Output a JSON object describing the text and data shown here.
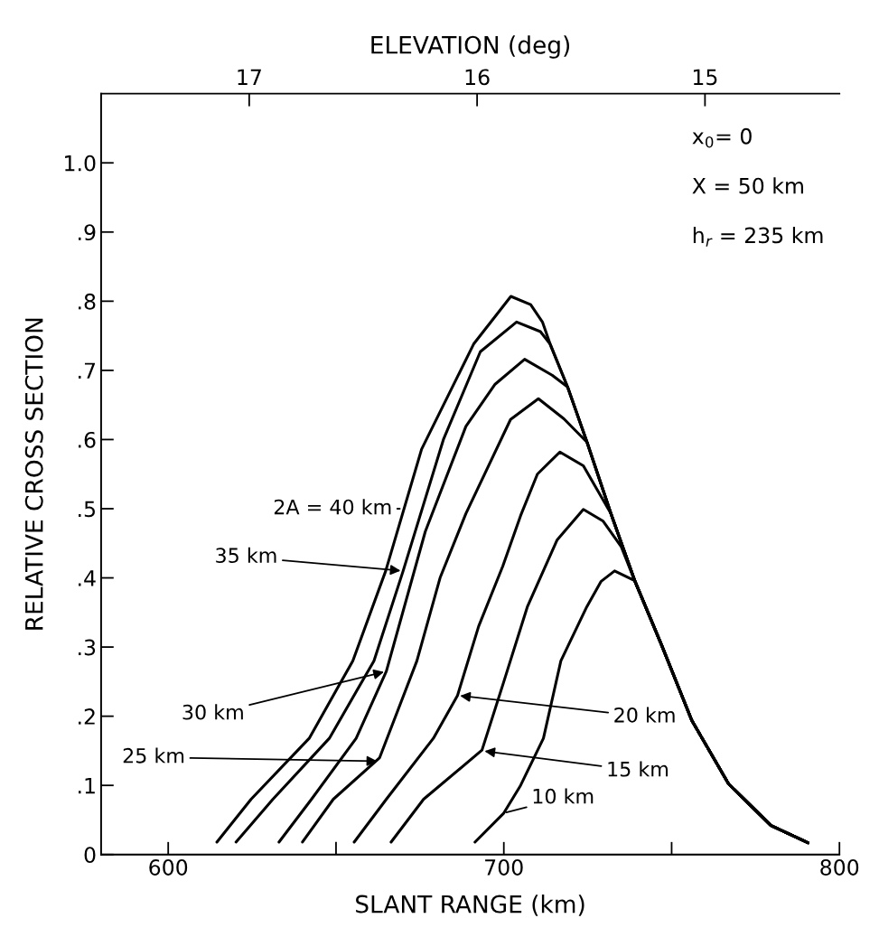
{
  "chart_data": {
    "type": "line",
    "xlabel": "SLANT RANGE (km)",
    "ylabel": "RELATIVE CROSS SECTION",
    "x2label": "ELEVATION (deg)",
    "xlim": [
      580,
      800
    ],
    "xticks": [
      600,
      {
        "value": 650,
        "label": null
      },
      700,
      {
        "value": 750,
        "label": null
      },
      800
    ],
    "x2lim": [
      17.65,
      14.41
    ],
    "x2ticks": [
      17,
      16,
      15
    ],
    "ylim": [
      0,
      1.1
    ],
    "yticks": [
      0,
      {
        "value": 0.1,
        "label": ".1"
      },
      {
        "value": 0.2,
        "label": ".2"
      },
      {
        "value": 0.3,
        "label": ".3"
      },
      {
        "value": 0.4,
        "label": ".4"
      },
      {
        "value": 0.5,
        "label": ".5"
      },
      {
        "value": 0.6,
        "label": ".6"
      },
      {
        "value": 0.7,
        "label": ".7"
      },
      {
        "value": 0.8,
        "label": ".8"
      },
      {
        "value": 0.9,
        "label": ".9"
      },
      {
        "value": 1.0,
        "label": "1.0"
      }
    ],
    "grid": false,
    "marker": "none",
    "line_style": "solid",
    "series": [
      {
        "color": "#000000",
        "x": [
          614.5,
          624.7,
          642,
          655,
          664.8,
          675.5,
          691,
          702.1,
          708,
          711.5,
          713.8,
          719,
          724.8,
          731.9,
          739,
          747,
          756,
          767,
          779.6,
          790.6
        ],
        "values": [
          0.018,
          0.08,
          0.168,
          0.28,
          0.41,
          0.586,
          0.738,
          0.807,
          0.795,
          0.77,
          0.738,
          0.676,
          0.596,
          0.493,
          0.396,
          0.303,
          0.194,
          0.102,
          0.042,
          0.017
        ]
      },
      {
        "color": "#000000",
        "x": [
          620.2,
          631.2,
          648,
          661.3,
          670,
          682,
          693,
          703.8,
          710.9,
          713.8,
          719,
          724.8,
          731.9,
          739,
          747,
          756,
          767,
          779.6,
          790.6
        ],
        "values": [
          0.018,
          0.08,
          0.168,
          0.28,
          0.41,
          0.6,
          0.727,
          0.77,
          0.756,
          0.738,
          0.676,
          0.596,
          0.493,
          0.396,
          0.303,
          0.194,
          0.102,
          0.042,
          0.017
        ]
      },
      {
        "color": "#000000",
        "x": [
          633,
          642.7,
          656,
          665,
          676.6,
          688.7,
          697.4,
          706.2,
          714.4,
          719,
          724.8,
          731.9,
          739,
          747,
          756,
          767,
          779.6,
          790.6
        ],
        "values": [
          0.018,
          0.08,
          0.168,
          0.265,
          0.467,
          0.619,
          0.68,
          0.716,
          0.693,
          0.676,
          0.596,
          0.493,
          0.396,
          0.303,
          0.194,
          0.102,
          0.042,
          0.017
        ]
      },
      {
        "color": "#000000",
        "x": [
          640,
          649.2,
          663,
          674.1,
          681,
          688.7,
          702,
          710.3,
          717.9,
          724.8,
          731.9,
          739,
          747,
          756,
          767,
          779.6,
          790.6
        ],
        "values": [
          0.018,
          0.08,
          0.14,
          0.28,
          0.4,
          0.493,
          0.629,
          0.659,
          0.63,
          0.596,
          0.493,
          0.396,
          0.303,
          0.194,
          0.102,
          0.042,
          0.017
        ]
      },
      {
        "color": "#000000",
        "x": [
          655.4,
          665,
          679,
          686.2,
          692.5,
          699.7,
          705,
          710,
          716.7,
          723.7,
          731.9,
          739,
          747,
          756,
          767,
          779.6,
          790.6
        ],
        "values": [
          0.018,
          0.08,
          0.168,
          0.23,
          0.33,
          0.417,
          0.49,
          0.55,
          0.582,
          0.562,
          0.493,
          0.396,
          0.303,
          0.194,
          0.102,
          0.042,
          0.017
        ]
      },
      {
        "color": "#000000",
        "x": [
          666.4,
          676.1,
          693.5,
          700,
          707,
          715.9,
          723.7,
          729.6,
          735,
          739,
          747,
          756,
          767,
          779.6,
          790.6
        ],
        "values": [
          0.018,
          0.08,
          0.151,
          0.25,
          0.358,
          0.455,
          0.499,
          0.482,
          0.445,
          0.396,
          0.303,
          0.194,
          0.102,
          0.042,
          0.017
        ]
      },
      {
        "color": "#000000",
        "x": [
          691.4,
          700,
          705,
          711.8,
          717,
          724.7,
          729,
          733,
          739,
          747,
          756,
          767,
          779.6,
          790.6
        ],
        "values": [
          0.018,
          0.06,
          0.1,
          0.168,
          0.28,
          0.358,
          0.395,
          0.41,
          0.396,
          0.303,
          0.194,
          0.102,
          0.042,
          0.017
        ]
      }
    ],
    "annotations": [
      "x$_{0}$= 0",
      "X = 50 km",
      "h$_{r}$ = 235 km",
      {
        "text": "2A = 40 km",
        "x": 669,
        "y": 0.5
      },
      {
        "text": "35 km",
        "x": 670,
        "y": 0.41
      },
      {
        "text": "30 km",
        "x": 665,
        "y": 0.265
      },
      {
        "text": "25 km",
        "x": 663,
        "y": 0.135
      },
      {
        "text": "20 km",
        "x": 686.2,
        "y": 0.23
      },
      {
        "text": "15 km",
        "x": 693.5,
        "y": 0.15
      },
      {
        "text": "10 km",
        "x": 700,
        "y": 0.06
      }
    ]
  }
}
